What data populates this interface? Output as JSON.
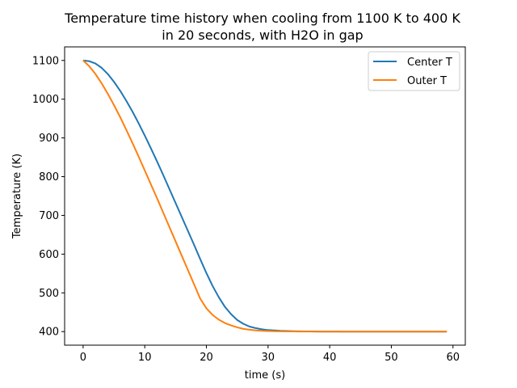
{
  "chart_data": {
    "type": "line",
    "title_line1": "Temperature time history when cooling from 1100 K to 400 K",
    "title_line2": "in 20 seconds, with H2O in gap",
    "xlabel": "time (s)",
    "ylabel": "Temperature (K)",
    "xlim": [
      -3,
      62
    ],
    "ylim": [
      365,
      1135
    ],
    "xticks": [
      0,
      10,
      20,
      30,
      40,
      50,
      60
    ],
    "yticks": [
      400,
      500,
      600,
      700,
      800,
      900,
      1000,
      1100
    ],
    "grid": false,
    "legend_position": "top-right",
    "x": [
      0,
      1,
      2,
      3,
      4,
      5,
      6,
      7,
      8,
      9,
      10,
      11,
      12,
      13,
      14,
      15,
      16,
      17,
      18,
      19,
      20,
      21,
      22,
      23,
      24,
      25,
      26,
      27,
      28,
      29,
      30,
      31,
      32,
      33,
      34,
      35,
      36,
      37,
      38,
      39,
      40,
      41,
      42,
      43,
      44,
      45,
      46,
      47,
      48,
      49,
      50,
      51,
      52,
      53,
      54,
      55,
      56,
      57,
      58,
      59
    ],
    "series": [
      {
        "name": "Center T",
        "color": "#1f77b4",
        "values": [
          1100,
          1098,
          1092,
          1081,
          1065,
          1045,
          1022,
          996,
          968,
          938,
          906,
          873,
          839,
          804,
          768,
          732,
          696,
          660,
          624,
          587,
          551,
          518,
          489,
          464,
          445,
          430,
          420,
          413,
          409,
          406,
          404,
          403,
          402,
          401.5,
          401,
          400.8,
          400.6,
          400.4,
          400.3,
          400.2,
          400.1,
          400.1,
          400,
          400,
          400,
          400,
          400,
          400,
          400,
          400,
          400,
          400,
          400,
          400,
          400,
          400,
          400,
          400,
          400,
          400
        ]
      },
      {
        "name": "Outer T",
        "color": "#ff7f0e",
        "values": [
          1100,
          1085,
          1065,
          1041,
          1014,
          985,
          954,
          921,
          887,
          852,
          816,
          780,
          744,
          707,
          670,
          633,
          596,
          559,
          522,
          485,
          460,
          443,
          431,
          422,
          416,
          411,
          407,
          405,
          403,
          402,
          401.5,
          401,
          400.8,
          400.6,
          400.4,
          400.3,
          400.2,
          400.1,
          400,
          400,
          400,
          400,
          400,
          400,
          400,
          400,
          400,
          400,
          400,
          400,
          400,
          400,
          400,
          400,
          400,
          400,
          400,
          400,
          400,
          400
        ]
      }
    ]
  }
}
